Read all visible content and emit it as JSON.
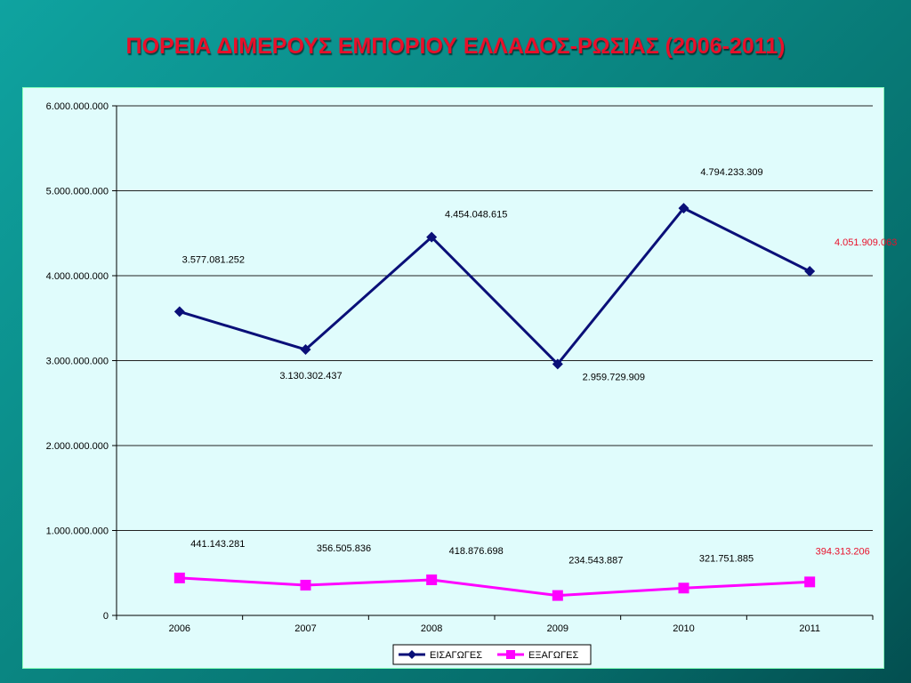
{
  "slide": {
    "title": "ΠΟΡΕΙΑ ΔΙΜΕΡΟΥΣ ΕΜΠΟΡΙΟΥ ΕΛΛΑΔΟΣ-ΡΩΣΙΑΣ (2006-2011)"
  },
  "colors": {
    "title": "#e8102a",
    "imports": "#0a0f78",
    "exports": "#ff00ff",
    "highlight_label": "#e8102a",
    "plot_background": "#e0fcfc",
    "gridline": "#222222"
  },
  "chart_data": {
    "type": "line",
    "title": "ΠΟΡΕΙΑ ΔΙΜΕΡΟΥΣ ΕΜΠΟΡΙΟΥ ΕΛΛΑΔΟΣ-ΡΩΣΙΑΣ (2006-2011)",
    "categories": [
      "2006",
      "2007",
      "2008",
      "2009",
      "2010",
      "2011"
    ],
    "ylim": [
      0,
      6000000000
    ],
    "yticks": [
      "0",
      "1.000.000.000",
      "2.000.000.000",
      "3.000.000.000",
      "4.000.000.000",
      "5.000.000.000",
      "6.000.000.000"
    ],
    "grid": true,
    "legend_position": "bottom",
    "series": [
      {
        "name": "ΕΙΣΑΓΩΓΕΣ",
        "marker": "diamond",
        "values": [
          3577081252,
          3130302437,
          4454048615,
          2959729909,
          4794233309,
          4051909063
        ],
        "labels": [
          "3.577.081.252",
          "3.130.302.437",
          "4.454.048.615",
          "2.959.729.909",
          "4.794.233.309",
          "4.051.909.063"
        ]
      },
      {
        "name": "ΕΞΑΓΩΓΕΣ",
        "marker": "square",
        "values": [
          441143281,
          356505836,
          418876698,
          234543887,
          321751885,
          394313206
        ],
        "labels": [
          "441.143.281",
          "356.505.836",
          "418.876.698",
          "234.543.887",
          "321.751.885",
          "394.313.206"
        ]
      }
    ]
  }
}
